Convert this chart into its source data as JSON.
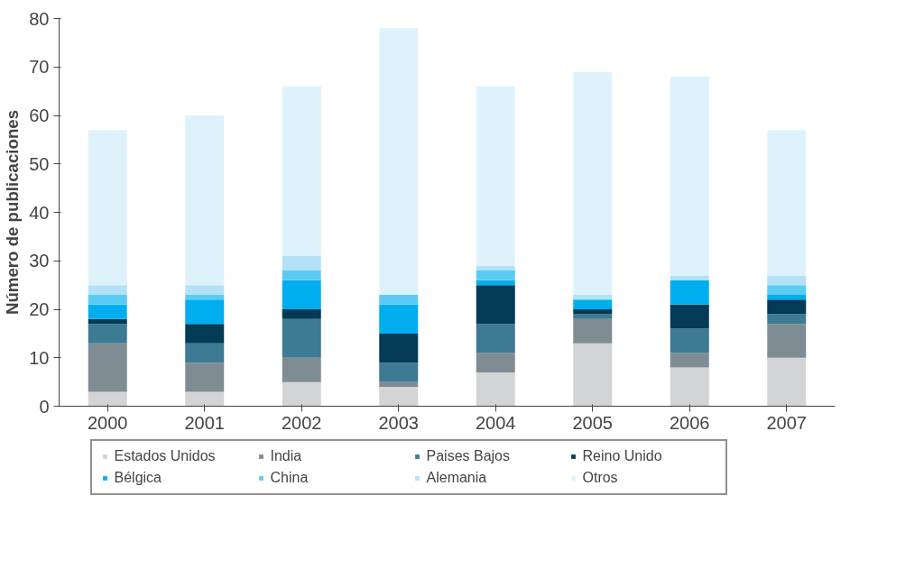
{
  "chart_data": {
    "type": "bar",
    "stacked": true,
    "ylabel": "Número de publicaciones",
    "categories": [
      "2000",
      "2001",
      "2002",
      "2003",
      "2004",
      "2005",
      "2006",
      "2007"
    ],
    "series": [
      {
        "name": "Estados Unidos",
        "color": "#d3d4d6",
        "values": [
          3,
          3,
          5,
          4,
          7,
          13,
          8,
          10
        ]
      },
      {
        "name": "India",
        "color": "#808c93",
        "values": [
          10,
          6,
          5,
          1,
          4,
          5,
          3,
          7
        ]
      },
      {
        "name": "Paises Bajos",
        "color": "#3d7a93",
        "values": [
          4,
          4,
          8,
          4,
          6,
          1,
          5,
          2
        ]
      },
      {
        "name": "Reino Unido",
        "color": "#033a56",
        "values": [
          1,
          4,
          2,
          6,
          8,
          1,
          5,
          3
        ]
      },
      {
        "name": "Bélgica",
        "color": "#00aeef",
        "values": [
          3,
          5,
          6,
          6,
          1,
          2,
          5,
          1
        ]
      },
      {
        "name": "China",
        "color": "#5ccbf4",
        "values": [
          2,
          1,
          2,
          2,
          2,
          0,
          0,
          2
        ]
      },
      {
        "name": "Alemania",
        "color": "#b3e1f7",
        "values": [
          2,
          2,
          3,
          0,
          1,
          1,
          1,
          2
        ]
      },
      {
        "name": "Otros",
        "color": "#def2fb",
        "values": [
          32,
          35,
          35,
          55,
          37,
          46,
          41,
          30
        ]
      }
    ],
    "ylim": [
      0,
      80
    ],
    "yticks": [
      0,
      10,
      20,
      30,
      40,
      50,
      60,
      70,
      80
    ],
    "grid": false,
    "legend": "bottom"
  }
}
